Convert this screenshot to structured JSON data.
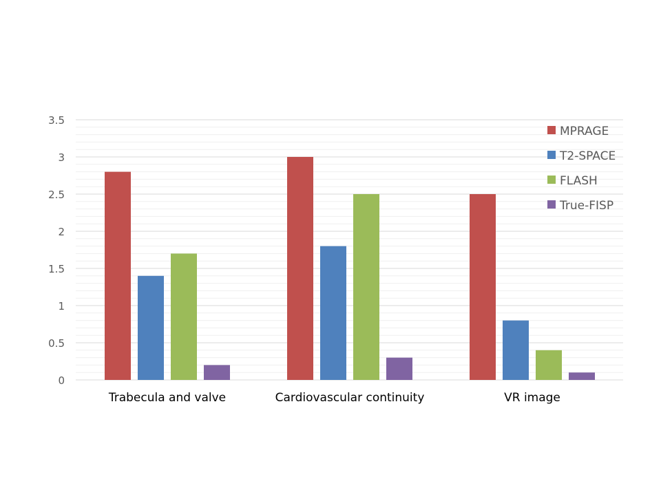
{
  "chart_data": {
    "type": "bar",
    "title": "",
    "xlabel": "",
    "ylabel": "",
    "categories": [
      "Trabecula and valve",
      "Cardiovascular continuity",
      "VR image"
    ],
    "series": [
      {
        "name": "MPRAGE",
        "color": "#C0504D",
        "values": [
          2.8,
          3.0,
          2.5
        ]
      },
      {
        "name": "T2-SPACE",
        "color": "#4F81BD",
        "values": [
          1.4,
          1.8,
          0.8
        ]
      },
      {
        "name": "FLASH",
        "color": "#9BBB59",
        "values": [
          1.7,
          2.5,
          0.4
        ]
      },
      {
        "name": "True-FISP",
        "color": "#8064A2",
        "values": [
          0.2,
          0.3,
          0.1
        ]
      }
    ],
    "ylim": [
      0,
      3.5
    ],
    "yticks": [
      "0",
      "0.5",
      "1",
      "1.5",
      "2",
      "2.5",
      "3",
      "3.5"
    ],
    "grid": {
      "major": 0.5,
      "minor": 0.1
    },
    "legend_position": "top-right"
  }
}
